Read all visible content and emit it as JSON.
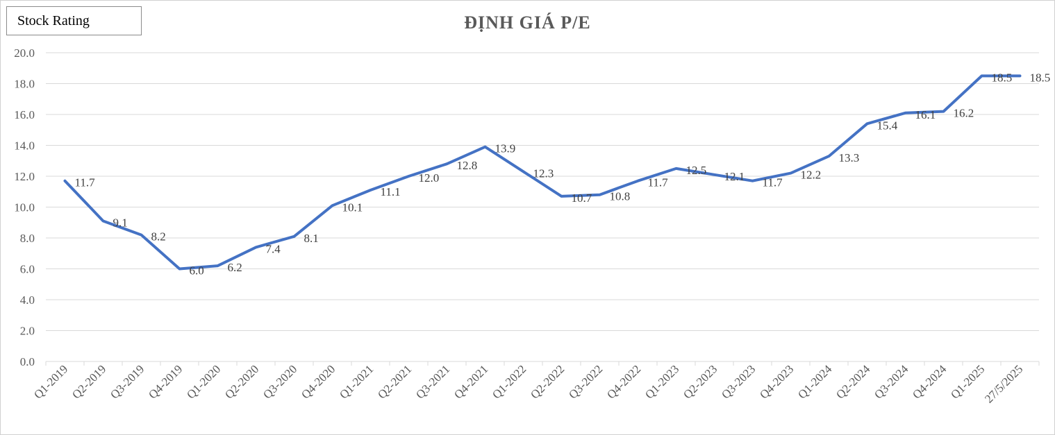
{
  "legend_label": "Stock Rating",
  "chart_data": {
    "type": "line",
    "title": "ĐỊNH GIÁ P/E",
    "categories": [
      "Q1-2019",
      "Q2-2019",
      "Q3-2019",
      "Q4-2019",
      "Q1-2020",
      "Q2-2020",
      "Q3-2020",
      "Q4-2020",
      "Q1-2021",
      "Q2-2021",
      "Q3-2021",
      "Q4-2021",
      "Q1-2022",
      "Q2-2022",
      "Q3-2022",
      "Q4-2022",
      "Q1-2023",
      "Q2-2023",
      "Q3-2023",
      "Q4-2023",
      "Q1-2024",
      "Q2-2024",
      "Q3-2024",
      "Q4-2024",
      "Q1-2025",
      "27/5/2025"
    ],
    "series": [
      {
        "values": [
          11.7,
          9.1,
          8.2,
          6.0,
          6.2,
          7.4,
          8.1,
          10.1,
          11.1,
          12.0,
          12.8,
          13.9,
          12.3,
          10.7,
          10.8,
          11.7,
          12.5,
          12.1,
          11.7,
          12.2,
          13.3,
          15.4,
          16.1,
          16.2,
          18.5,
          18.5
        ],
        "color": "#4472c4"
      }
    ],
    "yticks": [
      "0.0",
      "2.0",
      "4.0",
      "6.0",
      "8.0",
      "10.0",
      "12.0",
      "14.0",
      "16.0",
      "18.0",
      "20.0"
    ],
    "ylim": [
      0,
      20
    ],
    "grid": true
  }
}
